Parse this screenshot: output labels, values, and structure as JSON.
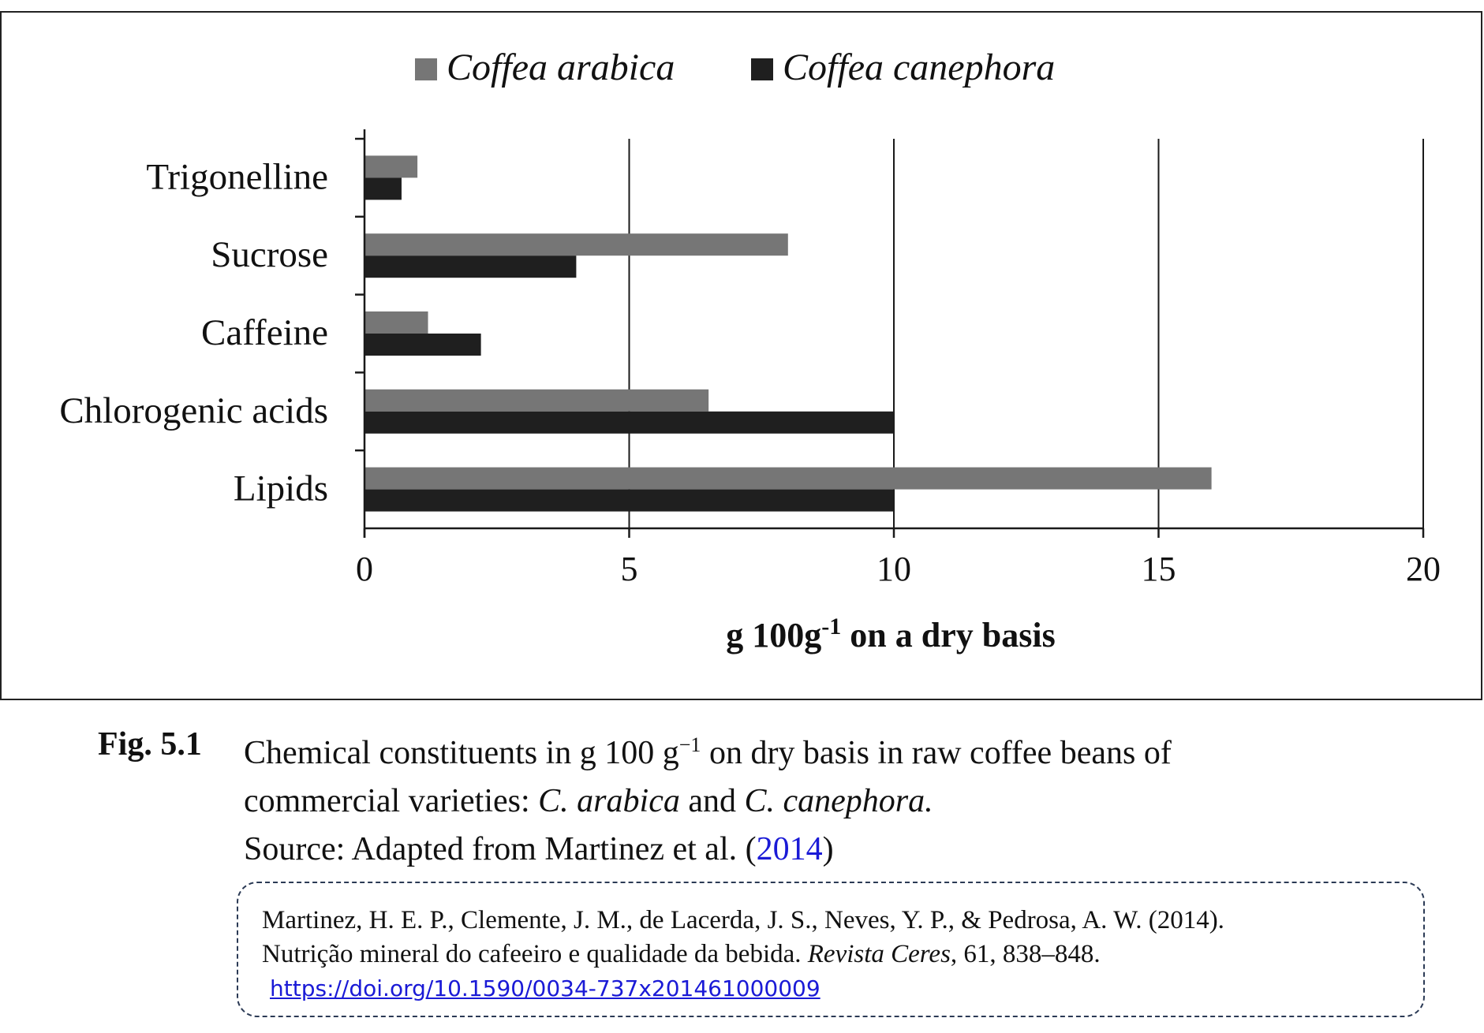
{
  "chart_data": {
    "type": "bar",
    "orientation": "horizontal",
    "categories": [
      "Trigonelline",
      "Sucrose",
      "Caffeine",
      "Chlorogenic acids",
      "Lipids"
    ],
    "series": [
      {
        "name": "Coffea arabica",
        "color": "#767676",
        "values": [
          1.0,
          8.0,
          1.2,
          6.5,
          16.0
        ]
      },
      {
        "name": "Coffea canephora",
        "color": "#1f1f1f",
        "values": [
          0.7,
          4.0,
          2.2,
          10.0,
          10.0
        ]
      }
    ],
    "xlabel": "g 100g",
    "xlabel_superscript": "-1",
    "xlabel_suffix": " on a dry basis",
    "xlim": [
      0,
      20
    ],
    "xticks": [
      "0",
      "5",
      "10",
      "15",
      "20"
    ],
    "xtick_values": [
      0,
      5,
      10,
      15,
      20
    ],
    "grid": "vertical",
    "legend": "top-center"
  },
  "caption": {
    "label": "Fig. 5.1",
    "line1": "Chemical constituents in g 100 g",
    "line1_sup": "−1",
    "line1_rest": " on dry basis in raw coffee beans of",
    "line2_a": "commercial varieties: ",
    "line2_b": "C. arabica",
    "line2_c": " and ",
    "line2_d": "C. canephora.",
    "source_a": "Source: Adapted from Martinez et al. (",
    "source_year": "2014",
    "source_b": ")"
  },
  "reference": {
    "line1": "Martinez, H. E. P., Clemente, J. M., de Lacerda, J. S., Neves, Y. P., & Pedrosa, A. W. (2014).",
    "line2_a": "Nutrição mineral do cafeeiro e qualidade da bebida. ",
    "line2_journal": "Revista Ceres",
    "line2_b": ", 61, 838–848.",
    "doi": "https://doi.org/10.1590/0034-737x201461000009"
  }
}
